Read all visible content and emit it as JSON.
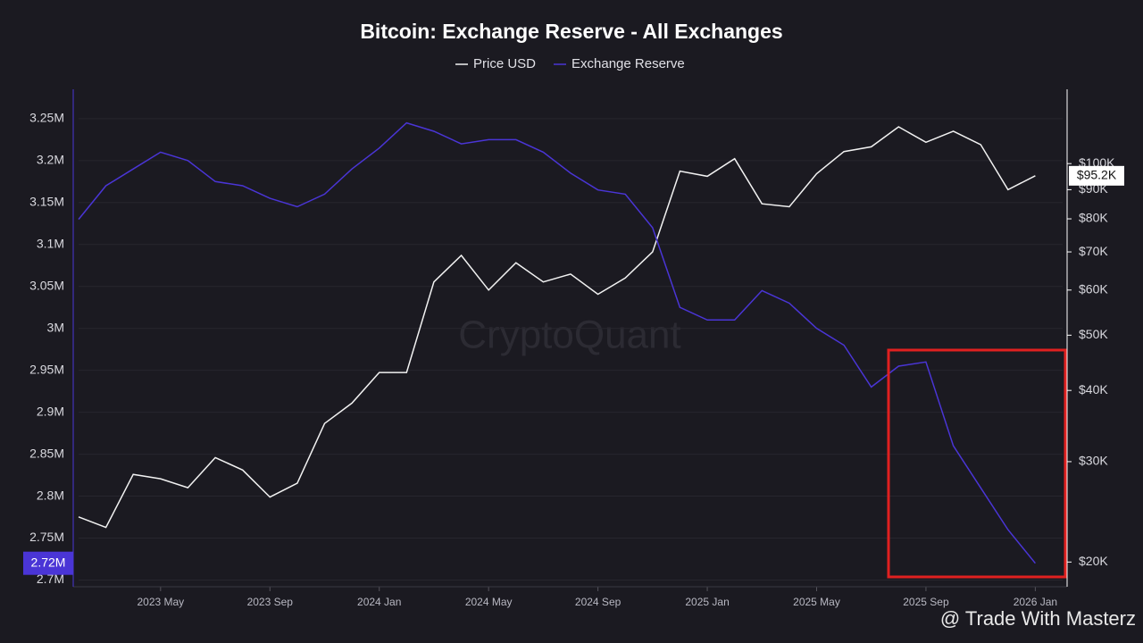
{
  "chart_data": {
    "type": "line",
    "title": "Bitcoin: Exchange Reserve - All Exchanges",
    "watermark": "CryptoQuant",
    "credit": "@ Trade With Masterz",
    "x": [
      "2023-02",
      "2023-03",
      "2023-04",
      "2023-05",
      "2023-06",
      "2023-07",
      "2023-08",
      "2023-09",
      "2023-10",
      "2023-11",
      "2023-12",
      "2024-01",
      "2024-02",
      "2024-03",
      "2024-04",
      "2024-05",
      "2024-06",
      "2024-07",
      "2024-08",
      "2024-09",
      "2024-10",
      "2024-11",
      "2024-12",
      "2025-01",
      "2025-02",
      "2025-03",
      "2025-04",
      "2025-05",
      "2025-06",
      "2025-07",
      "2025-08",
      "2025-09",
      "2025-10",
      "2025-11",
      "2025-12",
      "2026-01"
    ],
    "series": [
      {
        "name": "Price USD",
        "color": "#f2f2f2",
        "axis": "y2",
        "values": [
          24000,
          23000,
          28500,
          28000,
          27000,
          30500,
          29000,
          26000,
          27500,
          35000,
          38000,
          43000,
          43000,
          62000,
          69000,
          60000,
          67000,
          62000,
          64000,
          59000,
          63000,
          70000,
          97000,
          95000,
          102000,
          85000,
          84000,
          96000,
          105000,
          107000,
          116000,
          109000,
          114000,
          108000,
          90000,
          95200
        ],
        "value_labels": [
          null,
          null,
          null,
          null,
          null,
          null,
          null,
          null,
          null,
          null,
          null,
          null,
          null,
          null,
          null,
          null,
          null,
          null,
          null,
          null,
          null,
          null,
          null,
          null,
          null,
          null,
          null,
          null,
          null,
          null,
          null,
          null,
          null,
          null,
          null,
          "$95.2K"
        ]
      },
      {
        "name": "Exchange Reserve",
        "color": "#4a35d6",
        "values": [
          3130000,
          3170000,
          3190000,
          3210000,
          3200000,
          3175000,
          3170000,
          3155000,
          3145000,
          3160000,
          3190000,
          3215000,
          3245000,
          3235000,
          3220000,
          3225000,
          3225000,
          3210000,
          3185000,
          3165000,
          3160000,
          3120000,
          3025000,
          3010000,
          3010000,
          3045000,
          3030000,
          3000000,
          2980000,
          2930000,
          2955000,
          2960000,
          2860000,
          2810000,
          2760000,
          2720000
        ],
        "value_labels": [
          null,
          null,
          null,
          null,
          null,
          null,
          null,
          null,
          null,
          null,
          null,
          null,
          null,
          null,
          null,
          null,
          null,
          null,
          null,
          null,
          null,
          null,
          null,
          null,
          null,
          null,
          null,
          null,
          null,
          null,
          null,
          null,
          null,
          null,
          null,
          "2.72M"
        ]
      }
    ],
    "xlim": [
      "2023-02",
      "2026-02"
    ],
    "xticks": [
      {
        "value": "2023-05",
        "label": "2023 May"
      },
      {
        "value": "2023-09",
        "label": "2023 Sep"
      },
      {
        "value": "2024-01",
        "label": "2024 Jan"
      },
      {
        "value": "2024-05",
        "label": "2024 May"
      },
      {
        "value": "2024-09",
        "label": "2024 Sep"
      },
      {
        "value": "2025-01",
        "label": "2025 Jan"
      },
      {
        "value": "2025-05",
        "label": "2025 May"
      },
      {
        "value": "2025-09",
        "label": "2025 Sep"
      },
      {
        "value": "2026-01",
        "label": "2026 Jan"
      }
    ],
    "ylim": [
      2692000,
      3285000
    ],
    "yticks": [
      {
        "value": 2700000,
        "label": "2.7M"
      },
      {
        "value": 2750000,
        "label": "2.75M"
      },
      {
        "value": 2800000,
        "label": "2.8M"
      },
      {
        "value": 2850000,
        "label": "2.85M"
      },
      {
        "value": 2900000,
        "label": "2.9M"
      },
      {
        "value": 2950000,
        "label": "2.95M"
      },
      {
        "value": 3000000,
        "label": "3M"
      },
      {
        "value": 3050000,
        "label": "3.05M"
      },
      {
        "value": 3100000,
        "label": "3.1M"
      },
      {
        "value": 3150000,
        "label": "3.15M"
      },
      {
        "value": 3200000,
        "label": "3.2M"
      },
      {
        "value": 3250000,
        "label": "3.25M"
      }
    ],
    "y2lim": [
      18100,
      135000
    ],
    "y2scale": "log",
    "y2ticks": [
      {
        "value": 20000,
        "label": "$20K"
      },
      {
        "value": 30000,
        "label": "$30K"
      },
      {
        "value": 40000,
        "label": "$40K"
      },
      {
        "value": 50000,
        "label": "$50K"
      },
      {
        "value": 60000,
        "label": "$60K"
      },
      {
        "value": 70000,
        "label": "$70K"
      },
      {
        "value": 80000,
        "label": "$80K"
      },
      {
        "value": 90000,
        "label": "$90K"
      },
      {
        "value": 100000,
        "label": "$100K"
      }
    ],
    "grid": true
  }
}
